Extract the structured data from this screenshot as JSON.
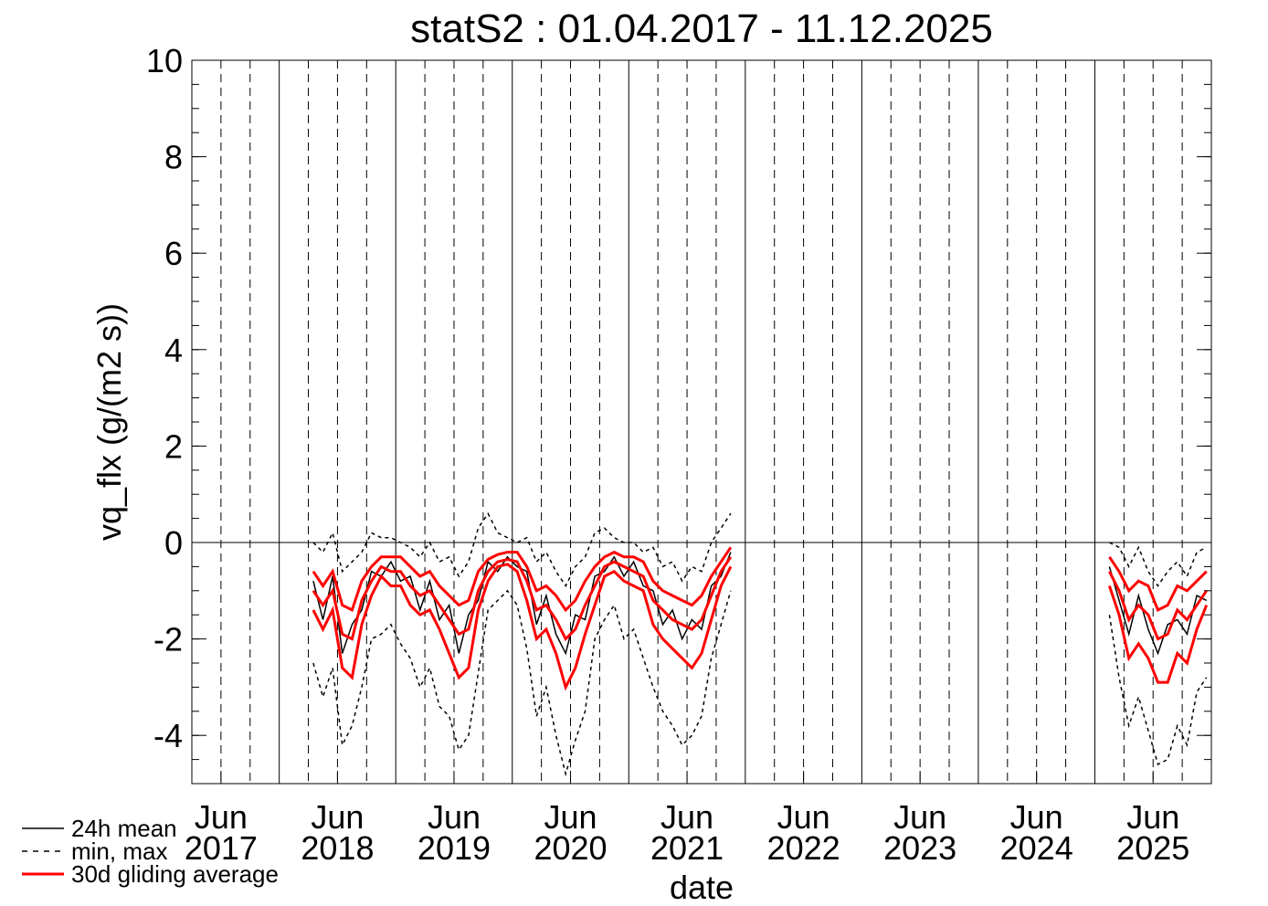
{
  "chart_data": {
    "type": "line",
    "title": "statS2 : 01.04.2017 - 11.12.2025",
    "x_label": "date",
    "y_label": "vq_flx (g/(m2 s))",
    "xlim": [
      "2017-04",
      "2025-12"
    ],
    "ylim": [
      -5,
      10
    ],
    "yticks": [
      -4,
      -2,
      0,
      2,
      4,
      6,
      8,
      10
    ],
    "xticks": [
      {
        "value": "2017-06",
        "label": "Jun\n2017"
      },
      {
        "value": "2018-06",
        "label": "Jun\n2018"
      },
      {
        "value": "2019-06",
        "label": "Jun\n2019"
      },
      {
        "value": "2020-06",
        "label": "Jun\n2020"
      },
      {
        "value": "2021-06",
        "label": "Jun\n2021"
      },
      {
        "value": "2022-06",
        "label": "Jun\n2022"
      },
      {
        "value": "2023-06",
        "label": "Jun\n2023"
      },
      {
        "value": "2024-06",
        "label": "Jun\n2024"
      },
      {
        "value": "2025-06",
        "label": "Jun\n2025"
      }
    ],
    "xgrid": [
      "2018-01",
      "2019-01",
      "2020-01",
      "2021-01",
      "2022-01",
      "2023-01",
      "2024-01",
      "2025-01"
    ],
    "xgrid_minor": [
      "2017-07",
      "2017-10",
      "2018-04",
      "2018-07",
      "2018-10",
      "2019-04",
      "2019-07",
      "2019-10",
      "2020-04",
      "2020-07",
      "2020-10",
      "2021-04",
      "2021-07",
      "2021-10",
      "2022-04",
      "2022-07",
      "2022-10",
      "2023-04",
      "2023-07",
      "2023-10",
      "2024-04",
      "2024-07",
      "2024-10",
      "2025-04",
      "2025-07",
      "2025-10"
    ],
    "zero_line": 0,
    "x": [
      "2018-04",
      "2018-05",
      "2018-06",
      "2018-07",
      "2018-08",
      "2018-09",
      "2018-10",
      "2018-11",
      "2018-12",
      "2019-01",
      "2019-02",
      "2019-03",
      "2019-04",
      "2019-05",
      "2019-06",
      "2019-07",
      "2019-08",
      "2019-09",
      "2019-10",
      "2019-11",
      "2019-12",
      "2020-01",
      "2020-02",
      "2020-03",
      "2020-04",
      "2020-05",
      "2020-06",
      "2020-07",
      "2020-08",
      "2020-09",
      "2020-10",
      "2020-11",
      "2020-12",
      "2021-01",
      "2021-02",
      "2021-03",
      "2021-04",
      "2021-05",
      "2021-06",
      "2021-07",
      "2021-08",
      "2021-09",
      "2021-10",
      "2021-11",
      "2023-06",
      "2025-02",
      "2025-03",
      "2025-04",
      "2025-05",
      "2025-06",
      "2025-07",
      "2025-08",
      "2025-09",
      "2025-10",
      "2025-11",
      "2025-12"
    ],
    "series": [
      {
        "name": "24h mean",
        "color": "#000000",
        "values": [
          -0.8,
          -1.6,
          -0.7,
          -2.3,
          -1.7,
          -1.4,
          -0.6,
          -0.7,
          -0.4,
          -0.8,
          -0.7,
          -1.4,
          -0.8,
          -1.6,
          -1.3,
          -2.3,
          -1.5,
          -1.2,
          -0.4,
          -0.6,
          -0.3,
          -0.5,
          -0.6,
          -1.7,
          -1.1,
          -1.9,
          -2.3,
          -1.5,
          -1.6,
          -0.7,
          -0.6,
          -0.3,
          -0.7,
          -0.4,
          -0.9,
          -1.0,
          -1.7,
          -1.4,
          -2.0,
          -1.6,
          -1.8,
          -0.9,
          -0.7,
          -0.2,
          null,
          -0.5,
          -1.2,
          -1.9,
          -1.1,
          -1.8,
          -2.3,
          -1.7,
          -1.6,
          -1.9,
          -1.1,
          -1.2
        ]
      },
      {
        "name": "min, max",
        "color": "#000000",
        "dashed": true,
        "low": [
          -2.5,
          -3.2,
          -2.6,
          -4.2,
          -3.8,
          -3.0,
          -2.0,
          -1.9,
          -1.7,
          -2.1,
          -2.4,
          -3.0,
          -2.6,
          -3.4,
          -3.6,
          -4.3,
          -4.0,
          -2.7,
          -1.4,
          -1.2,
          -1.0,
          -1.3,
          -2.2,
          -3.6,
          -3.0,
          -4.0,
          -4.8,
          -4.1,
          -3.5,
          -2.0,
          -1.6,
          -1.3,
          -2.0,
          -1.8,
          -2.4,
          -3.0,
          -3.5,
          -3.8,
          -4.2,
          -4.0,
          -3.6,
          -2.4,
          -1.7,
          -1.0,
          null,
          -1.5,
          -2.8,
          -3.8,
          -3.2,
          -3.9,
          -4.6,
          -4.5,
          -3.8,
          -4.2,
          -3.1,
          -2.8
        ],
        "high": [
          0.0,
          -0.2,
          0.2,
          -0.6,
          -0.4,
          -0.2,
          0.2,
          0.1,
          0.1,
          0.0,
          -0.1,
          -0.3,
          0.0,
          -0.4,
          -0.3,
          -0.7,
          -0.4,
          0.3,
          0.6,
          0.2,
          0.1,
          0.0,
          0.1,
          -0.4,
          -0.2,
          -0.6,
          -0.9,
          -0.5,
          -0.3,
          0.2,
          0.3,
          0.1,
          0.0,
          0.0,
          -0.2,
          -0.1,
          -0.5,
          -0.4,
          -0.8,
          -0.5,
          -0.6,
          0.0,
          0.3,
          0.6,
          null,
          0.0,
          -0.1,
          -0.5,
          -0.1,
          -0.6,
          -0.9,
          -0.6,
          -0.4,
          -0.7,
          -0.2,
          -0.1
        ]
      },
      {
        "name": "30d gliding average",
        "color": "#ff0000",
        "values": [
          -1.0,
          -1.3,
          -1.0,
          -1.9,
          -2.0,
          -1.2,
          -0.8,
          -0.5,
          -0.6,
          -0.6,
          -0.9,
          -1.1,
          -1.0,
          -1.3,
          -1.6,
          -1.9,
          -1.8,
          -1.0,
          -0.6,
          -0.4,
          -0.35,
          -0.4,
          -0.8,
          -1.4,
          -1.3,
          -1.6,
          -2.0,
          -1.8,
          -1.3,
          -0.9,
          -0.5,
          -0.4,
          -0.5,
          -0.6,
          -0.7,
          -1.2,
          -1.4,
          -1.6,
          -1.7,
          -1.8,
          -1.6,
          -1.1,
          -0.6,
          -0.3,
          null,
          -0.6,
          -1.0,
          -1.6,
          -1.3,
          -1.5,
          -2.0,
          -1.9,
          -1.4,
          -1.6,
          -1.3,
          -1.0
        ],
        "low": [
          -1.4,
          -1.8,
          -1.4,
          -2.6,
          -2.8,
          -1.7,
          -1.1,
          -0.7,
          -0.9,
          -0.9,
          -1.3,
          -1.5,
          -1.4,
          -1.8,
          -2.3,
          -2.8,
          -2.6,
          -1.4,
          -0.8,
          -0.5,
          -0.45,
          -0.6,
          -1.2,
          -2.0,
          -1.8,
          -2.3,
          -3.0,
          -2.6,
          -1.9,
          -1.3,
          -0.7,
          -0.6,
          -0.8,
          -0.9,
          -1.0,
          -1.7,
          -2.0,
          -2.2,
          -2.4,
          -2.6,
          -2.3,
          -1.6,
          -0.9,
          -0.5,
          null,
          -0.9,
          -1.5,
          -2.4,
          -2.1,
          -2.4,
          -2.9,
          -2.9,
          -2.3,
          -2.5,
          -1.8,
          -1.3
        ],
        "high": [
          -0.6,
          -0.9,
          -0.6,
          -1.3,
          -1.4,
          -0.8,
          -0.5,
          -0.3,
          -0.3,
          -0.3,
          -0.5,
          -0.7,
          -0.6,
          -0.9,
          -1.1,
          -1.3,
          -1.2,
          -0.6,
          -0.35,
          -0.25,
          -0.2,
          -0.2,
          -0.5,
          -1.0,
          -0.9,
          -1.1,
          -1.4,
          -1.2,
          -0.8,
          -0.5,
          -0.3,
          -0.2,
          -0.3,
          -0.3,
          -0.4,
          -0.8,
          -1.0,
          -1.1,
          -1.2,
          -1.3,
          -1.1,
          -0.7,
          -0.4,
          -0.1,
          null,
          -0.3,
          -0.6,
          -1.0,
          -0.8,
          -0.9,
          -1.4,
          -1.3,
          -0.9,
          -1.0,
          -0.8,
          -0.6
        ]
      }
    ]
  }
}
